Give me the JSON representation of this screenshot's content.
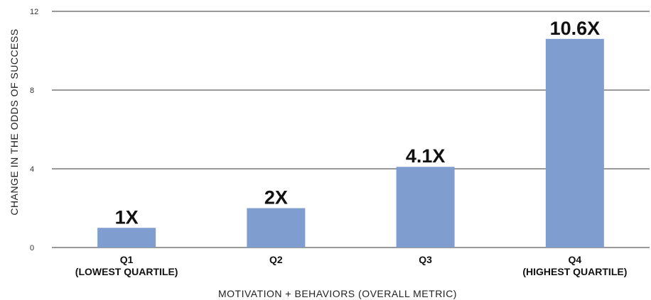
{
  "chart_data": {
    "type": "bar",
    "categories": [
      [
        "Q1",
        "(LOWEST QUARTILE)"
      ],
      [
        "Q2"
      ],
      [
        "Q3"
      ],
      [
        "Q4",
        "(HIGHEST QUARTILE)"
      ]
    ],
    "values": [
      1,
      2,
      4.1,
      10.6
    ],
    "data_labels": [
      "1X",
      "2X",
      "4.1X",
      "10.6X"
    ],
    "xlabel": "MOTIVATION + BEHAVIORS (OVERALL METRIC)",
    "ylabel": "CHANGE IN THE ODDS OF SUCCESS",
    "ylim": [
      0,
      12
    ],
    "yticks": [
      0,
      4,
      8,
      12
    ],
    "grid": true,
    "bar_color": "#7f9dcf"
  }
}
